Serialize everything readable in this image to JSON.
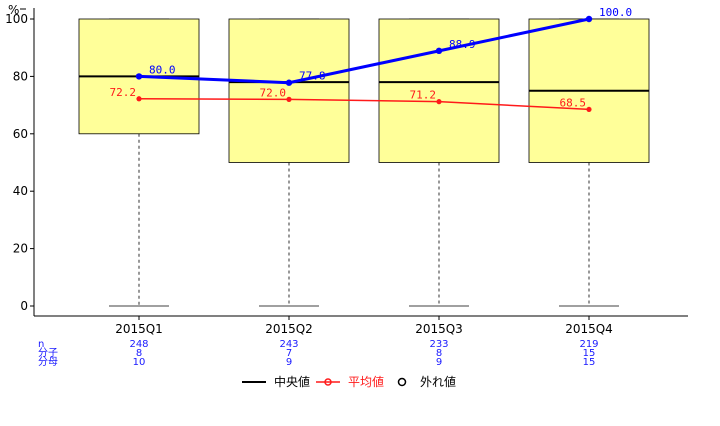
{
  "chart_data": {
    "type": "box",
    "unit_label": "%",
    "ylim": [
      0,
      100
    ],
    "yticks": [
      0,
      20,
      40,
      60,
      80,
      100
    ],
    "categories": [
      "2015Q1",
      "2015Q2",
      "2015Q3",
      "2015Q4"
    ],
    "boxes": [
      {
        "min": 0,
        "q1": 60,
        "median": 80,
        "q3": 100,
        "max": 100
      },
      {
        "min": 0,
        "q1": 50,
        "median": 78,
        "q3": 100,
        "max": 100
      },
      {
        "min": 0,
        "q1": 50,
        "median": 78,
        "q3": 100,
        "max": 100
      },
      {
        "min": 0,
        "q1": 50,
        "median": 75,
        "q3": 100,
        "max": 100
      }
    ],
    "highlight_series": {
      "values": [
        80.0,
        77.8,
        88.9,
        100.0
      ],
      "labels": [
        "80.0",
        "77.8",
        "88.9",
        "100.0"
      ],
      "color": "#0000ff"
    },
    "mean_series": {
      "name": "平均値",
      "values": [
        72.2,
        72.0,
        71.2,
        68.5
      ],
      "labels": [
        "72.2",
        "72.0",
        "71.2",
        "68.5"
      ],
      "color": "#ff1a1a"
    },
    "count_row_labels": [
      "n",
      "分子",
      "分母"
    ],
    "counts": [
      {
        "n": "248",
        "numerator": "8",
        "denominator": "10"
      },
      {
        "n": "243",
        "numerator": "7",
        "denominator": "9"
      },
      {
        "n": "233",
        "numerator": "8",
        "denominator": "9"
      },
      {
        "n": "219",
        "numerator": "15",
        "denominator": "15"
      }
    ],
    "legend": {
      "placement": "bottom",
      "items": [
        {
          "label": "中央値",
          "color": "#000000"
        },
        {
          "label": "平均値",
          "color": "#ff1a1a"
        },
        {
          "label": "外れ値",
          "color": "#000000"
        }
      ]
    },
    "box_fill": "#ffff99",
    "grid": false
  }
}
